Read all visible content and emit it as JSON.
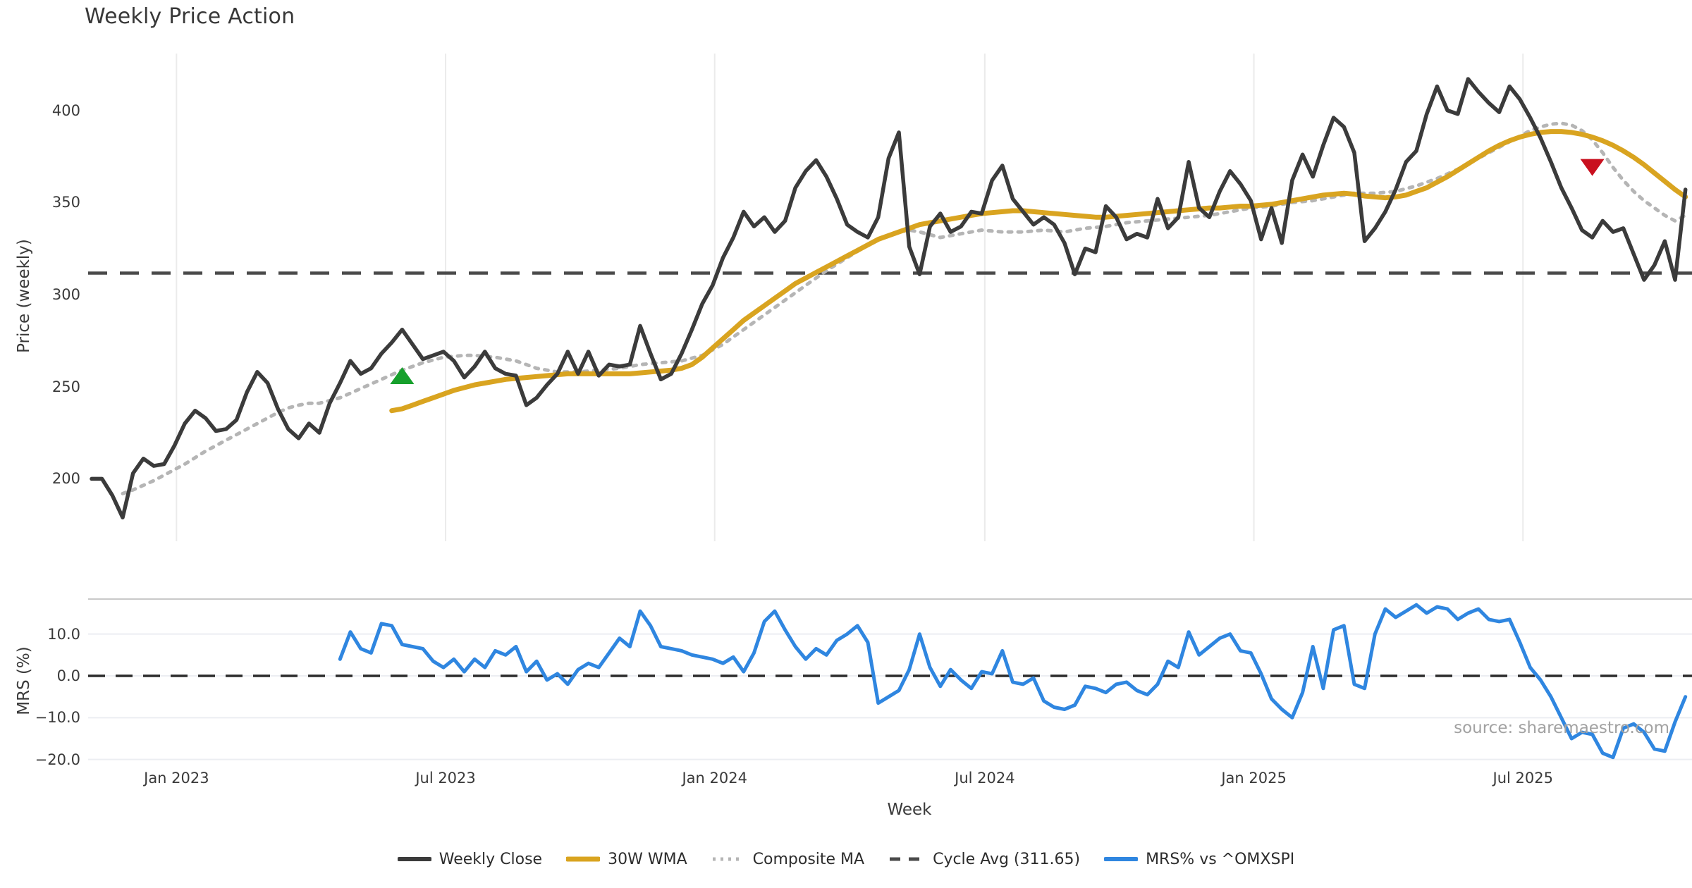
{
  "title": "Weekly Price Action",
  "source_text": "source: sharemaestro.com",
  "colors": {
    "close": "#3b3b3b",
    "wma": "#d9a420",
    "composite": "#b5b5b5",
    "cycle": "#4a4a4a",
    "mrs": "#2f86e0",
    "buy_marker": "#16a02c",
    "sell_marker": "#c9101f",
    "grid_top": "#ebebeb",
    "grid_bottom": "#eceef2",
    "spine": "#c9c9c9",
    "zero_dash": "#2b2b2b"
  },
  "legend": {
    "items": [
      {
        "label": "Weekly Close",
        "style": "solid",
        "color_key": "close"
      },
      {
        "label": "30W WMA",
        "style": "solid",
        "color_key": "wma"
      },
      {
        "label": "Composite MA",
        "style": "dotted",
        "color_key": "composite"
      },
      {
        "label": "Cycle Avg (311.65)",
        "style": "dashed",
        "color_key": "cycle"
      },
      {
        "label": "MRS% vs ^OMXSPI",
        "style": "solid",
        "color_key": "mrs"
      }
    ]
  },
  "chart_data": [
    {
      "type": "line",
      "panel": "price",
      "title": "Weekly Price Action",
      "xlabel": "",
      "ylabel": "Price (weekly)",
      "ylim": [
        165,
        431
      ],
      "grid": "vertical",
      "y_ticks": [
        {
          "value": 400,
          "label": "400"
        },
        {
          "value": 350,
          "label": "350"
        },
        {
          "value": 300,
          "label": "300"
        },
        {
          "value": 250,
          "label": "250"
        },
        {
          "value": 200,
          "label": "200"
        }
      ],
      "x_ticks": [
        {
          "week": 8.2,
          "label": "Jan 2023"
        },
        {
          "week": 34.2,
          "label": "Jul 2023"
        },
        {
          "week": 60.2,
          "label": "Jan 2024"
        },
        {
          "week": 86.3,
          "label": "Jul 2024"
        },
        {
          "week": 112.3,
          "label": "Jan 2025"
        },
        {
          "week": 138.3,
          "label": "Jul 2025"
        }
      ],
      "cycle_avg": 311.65,
      "markers": [
        {
          "kind": "buy",
          "shape": "triangle-up",
          "week": 30,
          "value": 256
        },
        {
          "kind": "sell",
          "shape": "triangle-down",
          "week": 145,
          "value": 369
        }
      ],
      "series": [
        {
          "name": "Weekly Close",
          "color_key": "close",
          "width": 5.5,
          "dash": null,
          "start_week": 0,
          "values": [
            200,
            200,
            191,
            179,
            203,
            211,
            207,
            208,
            218,
            230,
            237,
            233,
            226,
            227,
            232,
            247,
            258,
            252,
            238,
            227,
            222,
            230,
            225,
            241,
            252,
            264,
            257,
            260,
            268,
            274,
            281,
            273,
            265,
            267,
            269,
            264,
            255,
            261,
            269,
            260,
            257,
            256,
            240,
            244,
            251,
            257,
            269,
            257,
            269,
            256,
            262,
            261,
            262,
            283,
            268,
            254,
            257,
            268,
            281,
            295,
            305,
            320,
            331,
            345,
            337,
            342,
            334,
            340,
            358,
            367,
            373,
            364,
            352,
            338,
            334,
            331,
            342,
            374,
            388,
            326,
            311,
            337,
            344,
            334,
            337,
            345,
            344,
            362,
            370,
            352,
            345,
            338,
            342,
            338,
            328,
            311,
            325,
            323,
            348,
            342,
            330,
            333,
            331,
            352,
            336,
            342,
            372,
            347,
            342,
            356,
            367,
            360,
            351,
            330,
            347,
            328,
            362,
            376,
            364,
            381,
            396,
            391,
            377,
            329,
            336,
            345,
            357,
            372,
            378,
            398,
            413,
            400,
            398,
            417,
            410,
            404,
            399,
            413,
            406,
            396,
            385,
            372,
            358,
            347,
            335,
            331,
            340,
            334,
            336,
            322,
            308,
            316,
            329,
            308,
            357
          ]
        },
        {
          "name": "30W WMA",
          "color_key": "wma",
          "width": 7,
          "dash": null,
          "start_week": 29,
          "values": [
            237,
            238,
            240,
            242,
            244,
            246,
            248,
            249.5,
            251,
            252,
            253,
            254,
            254.5,
            255,
            255.5,
            256,
            256.5,
            257,
            257,
            257,
            257,
            257,
            257,
            257,
            257.5,
            258,
            258.5,
            259,
            260,
            262,
            266,
            271,
            276,
            281,
            286,
            290,
            294,
            298,
            302,
            306,
            309,
            312,
            315,
            318,
            321,
            324,
            327,
            330,
            332,
            334,
            336,
            338,
            339,
            340,
            341,
            342,
            343,
            344,
            344.5,
            345,
            345.5,
            345.5,
            345,
            344.5,
            344,
            343.5,
            343,
            342.5,
            342,
            342,
            342.5,
            343,
            343.5,
            344,
            344.5,
            345,
            345.5,
            346,
            346.5,
            347,
            347,
            347.5,
            348,
            348,
            348.5,
            349,
            350,
            351,
            352,
            353,
            354,
            354.5,
            355,
            354.5,
            353.5,
            353,
            352.5,
            353,
            354,
            356,
            358,
            361,
            364,
            367.5,
            371,
            374.5,
            378,
            381,
            383.5,
            385.5,
            387,
            388,
            388.5,
            388.5,
            388,
            387,
            385.5,
            383.5,
            381,
            378,
            374.5,
            370.5,
            366,
            361.5,
            357,
            353
          ]
        },
        {
          "name": "Composite MA",
          "color_key": "composite",
          "width": 5,
          "dash": "5 9",
          "start_week": 3,
          "values": [
            192,
            194,
            196.5,
            199,
            202,
            205,
            208,
            211.5,
            215,
            218,
            221,
            224,
            227,
            230,
            233,
            236,
            238.5,
            240,
            241,
            241,
            242.5,
            244,
            246.5,
            249,
            251.5,
            254,
            256.5,
            259,
            261,
            263,
            264.5,
            266,
            266.5,
            267,
            267,
            266.5,
            266,
            265,
            264,
            262,
            260,
            259,
            258,
            258,
            258,
            258.5,
            259,
            259.5,
            260,
            261,
            262,
            262.5,
            263,
            263.5,
            264,
            265.5,
            267,
            270,
            273,
            277,
            281,
            285,
            289,
            293,
            297,
            301,
            305,
            309,
            313,
            316.5,
            320,
            323.5,
            327,
            330,
            332,
            334,
            335,
            334,
            332.5,
            331,
            332,
            333,
            334,
            335,
            334.5,
            334,
            334,
            334,
            334.5,
            335,
            334.5,
            334,
            335,
            336,
            336.5,
            337,
            338,
            339,
            339.5,
            340,
            340.5,
            341,
            341.5,
            342,
            342.5,
            343,
            344,
            345,
            346,
            347,
            347.5,
            348,
            349,
            350,
            350.5,
            351,
            352,
            353,
            354,
            355,
            355,
            355,
            355.5,
            356,
            357.5,
            359,
            361,
            363,
            365.5,
            368,
            371,
            374,
            377,
            380,
            383,
            386,
            389,
            391,
            392.5,
            393,
            392,
            389,
            384,
            377,
            369,
            362,
            356,
            351,
            347,
            343,
            340,
            343
          ]
        }
      ]
    },
    {
      "type": "line",
      "panel": "oscillator",
      "xlabel": "Week",
      "ylabel": "MRS (%)",
      "ylim": [
        -21.5,
        18.5
      ],
      "grid": "horizontal",
      "zero_line": 0,
      "y_ticks": [
        {
          "value": 10,
          "label": "10.0"
        },
        {
          "value": 0,
          "label": "0.0"
        },
        {
          "value": -10,
          "label": "−10.0"
        },
        {
          "value": -20,
          "label": "−20.0"
        }
      ],
      "series": [
        {
          "name": "MRS% vs ^OMXSPI",
          "color_key": "mrs",
          "width": 5,
          "dash": null,
          "start_week": 24,
          "values": [
            4,
            10.5,
            6.5,
            5.5,
            12.5,
            12,
            7.5,
            7,
            6.5,
            3.5,
            2,
            4,
            1,
            4,
            2,
            6,
            5,
            7,
            1,
            3.5,
            -1,
            0.5,
            -2,
            1.5,
            3,
            2,
            5.5,
            9,
            7,
            15.5,
            12,
            7,
            6.5,
            6,
            5,
            4.5,
            4,
            3,
            4.5,
            1,
            5.5,
            13,
            15.5,
            11,
            7,
            4,
            6.5,
            5,
            8.5,
            10,
            12,
            8,
            -6.5,
            -5,
            -3.5,
            1.5,
            10,
            2,
            -2.5,
            1.5,
            -1,
            -3,
            1,
            0.5,
            6,
            -1.5,
            -2,
            -0.5,
            -6,
            -7.5,
            -8,
            -7,
            -2.5,
            -3,
            -4,
            -2,
            -1.5,
            -3.5,
            -4.5,
            -2,
            3.5,
            2,
            10.5,
            5,
            7,
            9,
            10,
            6,
            5.5,
            0.5,
            -5.5,
            -8,
            -10,
            -4,
            7,
            -3,
            11,
            12,
            -2,
            -3,
            10,
            16,
            14,
            15.5,
            17,
            15,
            16.5,
            16,
            13.5,
            15,
            16,
            13.5,
            13,
            13.5,
            8,
            2,
            -1,
            -5,
            -10,
            -15,
            -13.5,
            -14,
            -18.5,
            -19.5,
            -12.5,
            -11.5,
            -13.5,
            -17.5,
            -18,
            -11,
            -5
          ]
        }
      ]
    }
  ]
}
